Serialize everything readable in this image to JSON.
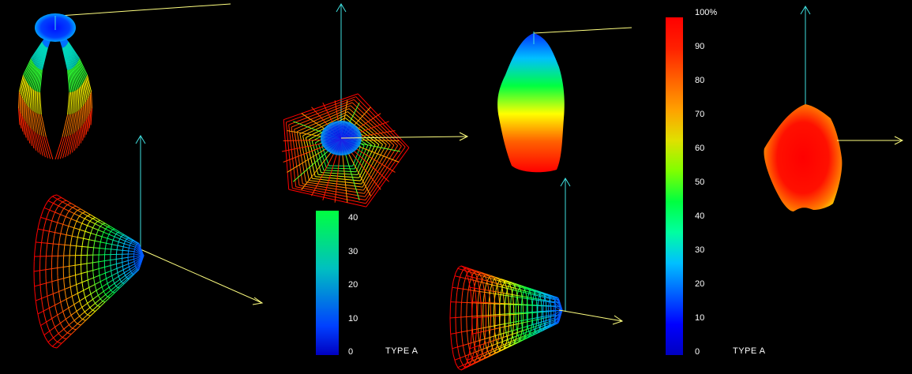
{
  "scale_small": {
    "ticks": [
      "40",
      "30",
      "20",
      "10",
      "0"
    ],
    "label": "TYPE A",
    "colors": [
      "#00ff40",
      "#00e080",
      "#00c0c0",
      "#0080e0",
      "#0040ff",
      "#0000c0"
    ]
  },
  "scale_large": {
    "ticks": [
      "100%",
      "90",
      "80",
      "70",
      "60",
      "50",
      "40",
      "30",
      "20",
      "10",
      "0"
    ],
    "label": "TYPE A",
    "colors": [
      "#ff0000",
      "#ff2000",
      "#ff6000",
      "#ffa000",
      "#e0e000",
      "#80ff00",
      "#00ff40",
      "#00ffa0",
      "#00c0ff",
      "#0060ff",
      "#0000ff",
      "#0000c0"
    ]
  },
  "colors": {
    "axis_vertical": "#40e0e0",
    "axis_horizontal": "#ffff80",
    "background": "#000000"
  }
}
